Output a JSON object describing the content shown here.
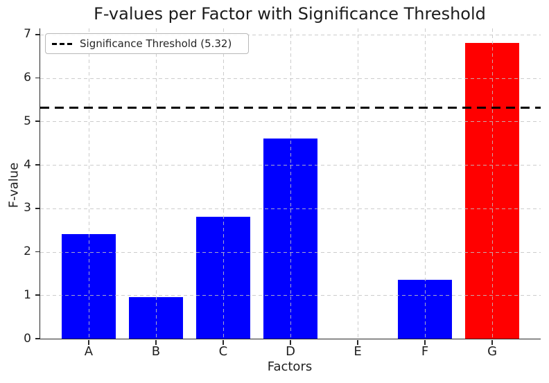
{
  "figure": {
    "background": "#ffffff",
    "text_color": "#1f1f1f",
    "spine_color": "#262626"
  },
  "chart_data": {
    "type": "bar",
    "title": "F-values per Factor with Significance Threshold",
    "xlabel": "Factors",
    "ylabel": "F-value",
    "categories": [
      "A",
      "B",
      "C",
      "D",
      "E",
      "F",
      "G"
    ],
    "values": [
      2.4,
      0.95,
      2.8,
      4.6,
      0.0,
      1.35,
      6.8
    ],
    "bar_colors": [
      "#0000ff",
      "#0000ff",
      "#0000ff",
      "#0000ff",
      "#0000ff",
      "#0000ff",
      "#ff0000"
    ],
    "default_bar_color": "#0000ff",
    "significant_bar_color": "#ff0000",
    "bar_width": 0.8,
    "threshold": {
      "value": 5.32,
      "label": "Significance Threshold (5.32)",
      "color": "#000000",
      "linestyle": "dashed"
    },
    "legend": {
      "position": "upper left",
      "entries": [
        {
          "label": "Significance Threshold (5.32)",
          "marker": "dashed-black-line"
        }
      ]
    },
    "yticks": [
      0,
      1,
      2,
      3,
      4,
      5,
      6,
      7
    ],
    "ylim": [
      0,
      7.14
    ],
    "xlim": [
      -0.72,
      6.72
    ],
    "grid": {
      "visible": true,
      "style": "dashed",
      "color": "#cccccc",
      "drawn_above_bars": true
    }
  }
}
